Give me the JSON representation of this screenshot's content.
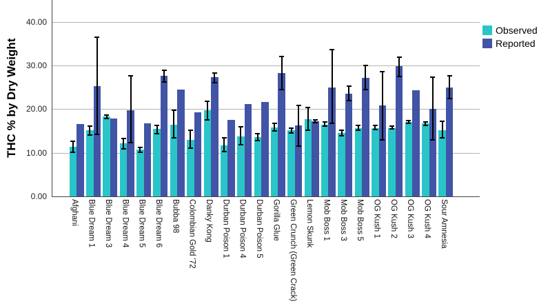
{
  "chart_data": {
    "type": "bar",
    "title": "",
    "xlabel": "",
    "ylabel": "THC % by Dry Weight",
    "ylim": [
      0,
      45
    ],
    "grid": true,
    "legend_position": "top-right",
    "yticks": [
      {
        "value": 0,
        "label": "0.00"
      },
      {
        "value": 10,
        "label": "10.00"
      },
      {
        "value": 20,
        "label": "20.00"
      },
      {
        "value": 30,
        "label": "30.00"
      },
      {
        "value": 40,
        "label": "40.00"
      }
    ],
    "categories": [
      "Afghani",
      "Blue Dream 1",
      "Blue Dream 3",
      "Blue Dream 4",
      "Blue Dream 5",
      "Blue Dream 6",
      "Bubba 98",
      "Colombian Gold '72",
      "Danky Kong",
      "Durban Poison 1",
      "Durban Poison 4",
      "Durban Poison 5",
      "Gorilla Glue",
      "Green Crunch (Green Crack)",
      "Lemon Skunk",
      "Mob Boss 1",
      "Mob Boss 3",
      "Mob Boss 5",
      "OG Kush 1",
      "OG Kush 2",
      "OG Kush 3",
      "OG Kush 4",
      "Sour Amnesia"
    ],
    "series": [
      {
        "name": "Observed",
        "color": "#29C5C8",
        "values": [
          11.4,
          15.1,
          18.3,
          12.1,
          10.7,
          15.4,
          16.5,
          13.0,
          19.7,
          11.7,
          13.8,
          13.6,
          15.8,
          15.1,
          17.7,
          16.5,
          14.5,
          15.7,
          15.7,
          15.7,
          17.1,
          16.7,
          15.2
        ],
        "error_low": [
          10.1,
          14.0,
          17.9,
          10.9,
          10.1,
          14.4,
          13.4,
          11.0,
          17.6,
          10.2,
          11.8,
          12.8,
          15.0,
          14.6,
          15.2,
          16.1,
          13.9,
          15.2,
          15.3,
          15.4,
          16.7,
          16.3,
          13.4
        ],
        "error_high": [
          12.6,
          16.1,
          18.7,
          13.2,
          11.2,
          16.3,
          19.8,
          15.2,
          21.8,
          13.4,
          16.0,
          14.4,
          16.8,
          15.6,
          20.4,
          17.0,
          15.2,
          16.2,
          16.2,
          16.1,
          17.4,
          17.1,
          17.2
        ]
      },
      {
        "name": "Reported",
        "color": "#4254A5",
        "values": [
          16.6,
          25.3,
          17.9,
          19.8,
          16.8,
          27.6,
          24.4,
          19.3,
          27.3,
          17.5,
          21.1,
          21.6,
          28.2,
          16.2,
          17.2,
          25.0,
          23.6,
          27.1,
          20.8,
          29.8,
          24.3,
          20.1,
          25.0
        ],
        "error_low": [
          null,
          14.2,
          null,
          12.3,
          null,
          26.2,
          null,
          null,
          26.0,
          null,
          null,
          null,
          24.4,
          11.5,
          16.9,
          16.8,
          22.0,
          24.4,
          13.0,
          27.4,
          null,
          12.9,
          22.4
        ],
        "error_high": [
          null,
          36.4,
          null,
          27.6,
          null,
          28.9,
          null,
          null,
          28.3,
          null,
          null,
          null,
          32.0,
          20.8,
          17.6,
          33.7,
          25.2,
          30.0,
          28.6,
          31.9,
          null,
          27.3,
          27.7
        ]
      }
    ]
  }
}
